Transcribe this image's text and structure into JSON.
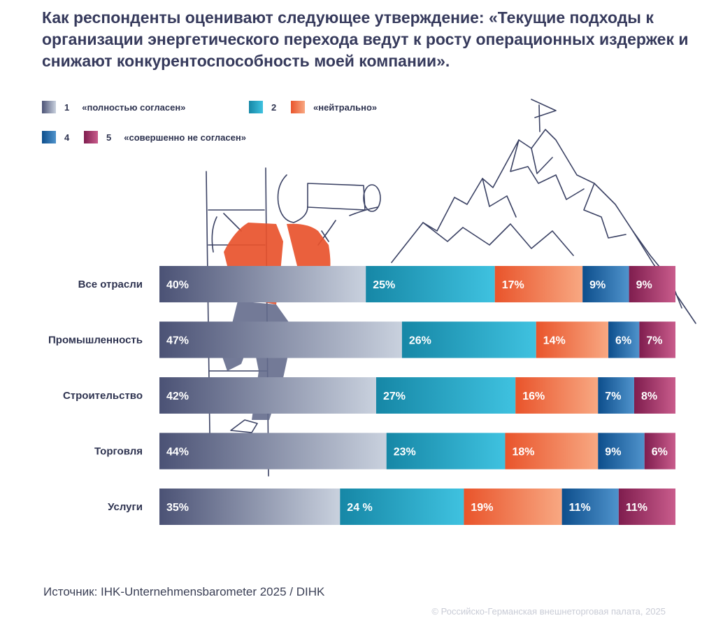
{
  "title": "Как респонденты оценивают следующее утверждение:  «Текущие подходы к организации энергетического перехода ведут к росту операционных издержек и снижают конкурентоспособность моей компании».",
  "legend": [
    {
      "num": "1",
      "label": "«полностью согласен»"
    },
    {
      "num": "2",
      "label": ""
    },
    {
      "num": "",
      "label": "«нейтрально»"
    },
    {
      "num": "4",
      "label": ""
    },
    {
      "num": "5",
      "label": "«совершенно не согласен»"
    }
  ],
  "colors": {
    "1": [
      "#4b5275",
      "#c9d1de"
    ],
    "2": [
      "#1687a6",
      "#3fc2e0"
    ],
    "3": [
      "#e9542b",
      "#f8a882"
    ],
    "4": [
      "#0d4e8c",
      "#4f93cc"
    ],
    "5": [
      "#7f1d4e",
      "#c95c8c"
    ]
  },
  "chart_data": {
    "type": "bar",
    "orientation": "horizontal",
    "stacked": true,
    "categories": [
      "Все отрасли",
      "Промышленность",
      "Строительство",
      "Торговля",
      "Услуги"
    ],
    "series": [
      {
        "name": "1",
        "values": [
          40,
          47,
          42,
          44,
          35
        ],
        "labels": [
          "40%",
          "47%",
          "42%",
          "44%",
          "35%"
        ]
      },
      {
        "name": "2",
        "values": [
          25,
          26,
          27,
          23,
          24
        ],
        "labels": [
          "25%",
          "26%",
          "27%",
          "23%",
          "24 %"
        ]
      },
      {
        "name": "3",
        "values": [
          17,
          14,
          16,
          18,
          19
        ],
        "labels": [
          "17%",
          "14%",
          "16%",
          "18%",
          "19%"
        ]
      },
      {
        "name": "4",
        "values": [
          9,
          6,
          7,
          9,
          11
        ],
        "labels": [
          "9%",
          "6%",
          "7%",
          "9%",
          "11%"
        ]
      },
      {
        "name": "5",
        "values": [
          9,
          7,
          8,
          6,
          11
        ],
        "labels": [
          "9%",
          "7%",
          "8%",
          "6%",
          "11%"
        ]
      }
    ]
  },
  "source": "Источник: IHK-Unternehmensbarometer 2025 / DIHK",
  "copyright": "© Российско-Германская внешнеторговая палата, 2025"
}
